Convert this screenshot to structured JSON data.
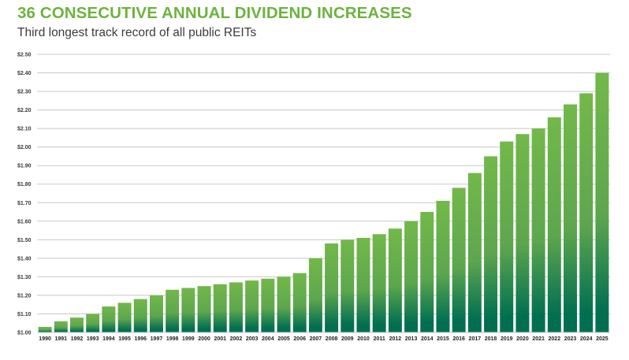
{
  "title": "36 CONSECUTIVE ANNUAL DIVIDEND INCREASES",
  "subtitle": "Third longest track record of all public REITs",
  "colors": {
    "title": "#6db33f",
    "bar_top": "#72b84a",
    "bar_mid": "#5ea64e",
    "bar_bottom": "#006f50",
    "grid": "#c8c8c8"
  },
  "chart_data": {
    "type": "bar",
    "title": "36 CONSECUTIVE ANNUAL DIVIDEND INCREASES",
    "subtitle": "Third longest track record of all public REITs",
    "xlabel": "",
    "ylabel": "",
    "ylim": [
      1.0,
      2.5
    ],
    "yticks": [
      1.0,
      1.1,
      1.2,
      1.3,
      1.4,
      1.5,
      1.6,
      1.7,
      1.8,
      1.9,
      2.0,
      2.1,
      2.2,
      2.3,
      2.4,
      2.5
    ],
    "ytick_labels": [
      "$1.00",
      "$1.10",
      "$1.20",
      "$1.30",
      "$1.40",
      "$1.50",
      "$1.60",
      "$1.70",
      "$1.80",
      "$1.90",
      "$2.00",
      "$2.10",
      "$2.20",
      "$2.30",
      "$2.40",
      "$2.50"
    ],
    "grid": true,
    "legend": "none",
    "categories": [
      "1990",
      "1991",
      "1992",
      "1993",
      "1994",
      "1995",
      "1996",
      "1997",
      "1998",
      "1999",
      "2000",
      "2001",
      "2002",
      "2003",
      "2004",
      "2005",
      "2006",
      "2007",
      "2008",
      "2009",
      "2010",
      "2011",
      "2012",
      "2013",
      "2014",
      "2015",
      "2016",
      "2017",
      "2018",
      "2019",
      "2020",
      "2021",
      "2022",
      "2023",
      "2024",
      "2025"
    ],
    "values": [
      1.03,
      1.06,
      1.08,
      1.1,
      1.14,
      1.16,
      1.18,
      1.2,
      1.23,
      1.24,
      1.25,
      1.26,
      1.27,
      1.28,
      1.29,
      1.3,
      1.32,
      1.4,
      1.48,
      1.5,
      1.51,
      1.53,
      1.56,
      1.6,
      1.65,
      1.71,
      1.78,
      1.86,
      1.95,
      2.03,
      2.07,
      2.1,
      2.16,
      2.23,
      2.29,
      2.4
    ]
  }
}
